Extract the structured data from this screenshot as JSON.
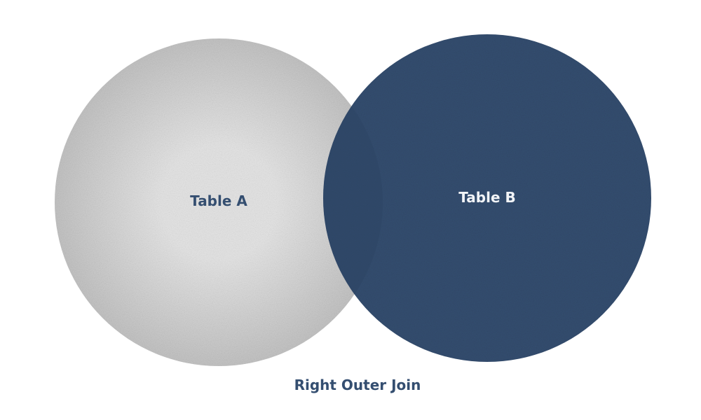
{
  "diagram": {
    "table_a": {
      "label": "Table A",
      "highlighted": false
    },
    "table_b": {
      "label": "Table B",
      "highlighted": true
    },
    "caption": "Right Outer Join"
  },
  "colors": {
    "primary": "#344e70",
    "primary_overlap": "#2e4565",
    "inactive_center": "#e6e6e6",
    "inactive_edge": "#c4c4c4",
    "label_on_light": "#344e70",
    "label_on_dark": "#f2f4f7"
  }
}
